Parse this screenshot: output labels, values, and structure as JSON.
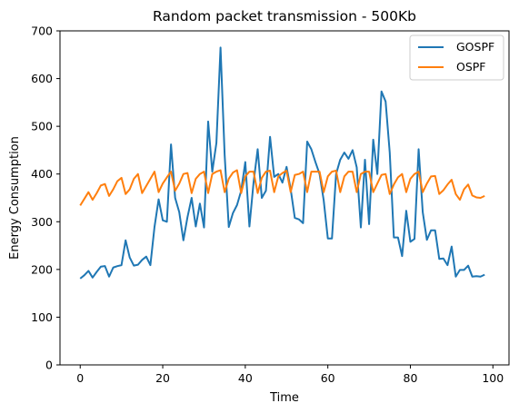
{
  "chart_data": {
    "type": "line",
    "title": "Random packet transmission - 500Kb",
    "xlabel": "Time",
    "ylabel": "Energy Consumption",
    "xlim": [
      -4.9,
      103.9
    ],
    "ylim": [
      0,
      700
    ],
    "xticks": [
      0,
      20,
      40,
      60,
      80,
      100
    ],
    "yticks": [
      0,
      100,
      200,
      300,
      400,
      500,
      600,
      700
    ],
    "grid": false,
    "legend_position": "top-right",
    "x": [
      0,
      1,
      2,
      3,
      4,
      5,
      6,
      7,
      8,
      9,
      10,
      11,
      12,
      13,
      14,
      15,
      16,
      17,
      18,
      19,
      20,
      21,
      22,
      23,
      24,
      25,
      26,
      27,
      28,
      29,
      30,
      31,
      32,
      33,
      34,
      35,
      36,
      37,
      38,
      39,
      40,
      41,
      42,
      43,
      44,
      45,
      46,
      47,
      48,
      49,
      50,
      51,
      52,
      53,
      54,
      55,
      56,
      57,
      58,
      59,
      60,
      61,
      62,
      63,
      64,
      65,
      66,
      67,
      68,
      69,
      70,
      71,
      72,
      73,
      74,
      75,
      76,
      77,
      78,
      79,
      80,
      81,
      82,
      83,
      84,
      85,
      86,
      87,
      88,
      89,
      90,
      91,
      92,
      93,
      94,
      95,
      96,
      97,
      98
    ],
    "series": [
      {
        "name": "GOSPF",
        "color": "#1f77b4",
        "values": [
          181,
          188,
          197,
          183,
          195,
          206,
          207,
          185,
          204,
          207,
          209,
          261,
          225,
          208,
          210,
          220,
          227,
          209,
          289,
          347,
          303,
          300,
          462,
          350,
          320,
          261,
          310,
          350,
          290,
          338,
          288,
          510,
          405,
          465,
          665,
          440,
          289,
          318,
          335,
          365,
          425,
          290,
          382,
          452,
          350,
          365,
          478,
          394,
          400,
          382,
          415,
          368,
          308,
          305,
          297,
          468,
          452,
          425,
          400,
          345,
          265,
          265,
          400,
          430,
          445,
          432,
          450,
          414,
          288,
          430,
          295,
          472,
          400,
          573,
          552,
          445,
          267,
          267,
          228,
          323,
          258,
          264,
          452,
          320,
          262,
          282,
          282,
          222,
          223,
          209,
          248,
          185,
          199,
          199,
          208,
          185,
          186,
          185,
          189
        ]
      },
      {
        "name": "OSPF",
        "color": "#ff7f0e",
        "values": [
          334,
          348,
          362,
          346,
          360,
          376,
          379,
          354,
          368,
          385,
          392,
          358,
          368,
          390,
          400,
          360,
          375,
          390,
          405,
          362,
          380,
          393,
          405,
          365,
          380,
          400,
          402,
          360,
          390,
          400,
          405,
          360,
          400,
          405,
          408,
          362,
          390,
          403,
          408,
          360,
          395,
          405,
          405,
          360,
          392,
          405,
          407,
          362,
          395,
          402,
          407,
          362,
          398,
          400,
          405,
          362,
          405,
          405,
          405,
          362,
          395,
          405,
          407,
          362,
          395,
          405,
          405,
          362,
          400,
          405,
          405,
          362,
          380,
          398,
          400,
          358,
          378,
          393,
          400,
          362,
          390,
          400,
          405,
          362,
          380,
          395,
          396,
          358,
          366,
          378,
          388,
          358,
          346,
          368,
          378,
          355,
          351,
          350,
          354
        ]
      }
    ]
  }
}
